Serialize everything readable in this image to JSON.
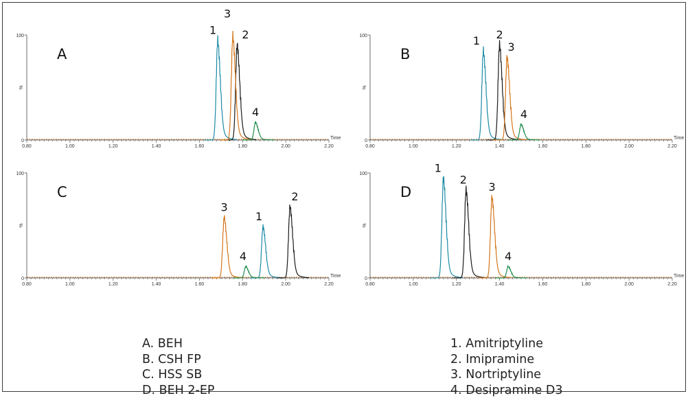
{
  "colors": {
    "amitriptyline": "#1b8aa5",
    "imipramine": "#1a1a1a",
    "nortriptyline": "#d4761b",
    "desipramine": "#1f8c4e",
    "axis": "#6a6a6a",
    "baseline": "#c87a2a"
  },
  "chart_data": [
    {
      "type": "line",
      "panel": "A",
      "xlabel": "Time",
      "ylabel": "%",
      "xlim": [
        0.8,
        2.2
      ],
      "ylim": [
        0,
        100
      ],
      "xticks": [
        "0.80",
        "1.00",
        "1.20",
        "1.40",
        "1.60",
        "1.80",
        "2.00",
        "2.20"
      ],
      "yticks": [
        "0",
        "100"
      ],
      "peaks": [
        {
          "label": "1",
          "compound": "amitriptyline",
          "rt": 1.685,
          "height": 95
        },
        {
          "label": "2",
          "compound": "imipramine",
          "rt": 1.775,
          "height": 91
        },
        {
          "label": "3",
          "compound": "nortriptyline",
          "rt": 1.755,
          "height": 99
        },
        {
          "label": "4",
          "compound": "desipramine",
          "rt": 1.86,
          "height": 17
        }
      ]
    },
    {
      "type": "line",
      "panel": "B",
      "xlabel": "Time",
      "ylabel": "%",
      "xlim": [
        0.8,
        2.2
      ],
      "ylim": [
        0,
        100
      ],
      "xticks": [
        "0.80",
        "1.00",
        "1.20",
        "1.40",
        "1.60",
        "1.80",
        "2.00",
        "2.20"
      ],
      "yticks": [
        "0",
        "100"
      ],
      "peaks": [
        {
          "label": "1",
          "compound": "amitriptyline",
          "rt": 1.325,
          "height": 85
        },
        {
          "label": "2",
          "compound": "imipramine",
          "rt": 1.4,
          "height": 91
        },
        {
          "label": "3",
          "compound": "nortriptyline",
          "rt": 1.435,
          "height": 79
        },
        {
          "label": "4",
          "compound": "desipramine",
          "rt": 1.5,
          "height": 15
        }
      ]
    },
    {
      "type": "line",
      "panel": "C",
      "xlabel": "Time",
      "ylabel": "%",
      "xlim": [
        0.8,
        2.2
      ],
      "ylim": [
        0,
        100
      ],
      "xticks": [
        "0.80",
        "1.00",
        "1.20",
        "1.40",
        "1.60",
        "1.80",
        "2.00",
        "2.20"
      ],
      "yticks": [
        "0",
        "100"
      ],
      "peaks": [
        {
          "label": "1",
          "compound": "amitriptyline",
          "rt": 1.895,
          "height": 49
        },
        {
          "label": "2",
          "compound": "imipramine",
          "rt": 2.02,
          "height": 68
        },
        {
          "label": "3",
          "compound": "nortriptyline",
          "rt": 1.715,
          "height": 58
        },
        {
          "label": "4",
          "compound": "desipramine",
          "rt": 1.815,
          "height": 11
        }
      ]
    },
    {
      "type": "line",
      "panel": "D",
      "xlabel": "Time",
      "ylabel": "%",
      "xlim": [
        0.8,
        2.2
      ],
      "ylim": [
        0,
        100
      ],
      "xticks": [
        "0.80",
        "1.00",
        "1.20",
        "1.40",
        "1.60",
        "1.80",
        "2.00",
        "2.20"
      ],
      "yticks": [
        "0",
        "100"
      ],
      "peaks": [
        {
          "label": "1",
          "compound": "amitriptyline",
          "rt": 1.14,
          "height": 95
        },
        {
          "label": "2",
          "compound": "imipramine",
          "rt": 1.245,
          "height": 84
        },
        {
          "label": "3",
          "compound": "nortriptyline",
          "rt": 1.365,
          "height": 77
        },
        {
          "label": "4",
          "compound": "desipramine",
          "rt": 1.44,
          "height": 11
        }
      ]
    }
  ],
  "legend": {
    "columns": [
      "A. BEH",
      "B. CSH FP",
      "C. HSS SB",
      "D. BEH 2-EP"
    ],
    "compounds": [
      "1. Amitriptyline",
      "2. Imipramine",
      "3. Nortriptyline",
      "4. Desipramine D3"
    ]
  }
}
